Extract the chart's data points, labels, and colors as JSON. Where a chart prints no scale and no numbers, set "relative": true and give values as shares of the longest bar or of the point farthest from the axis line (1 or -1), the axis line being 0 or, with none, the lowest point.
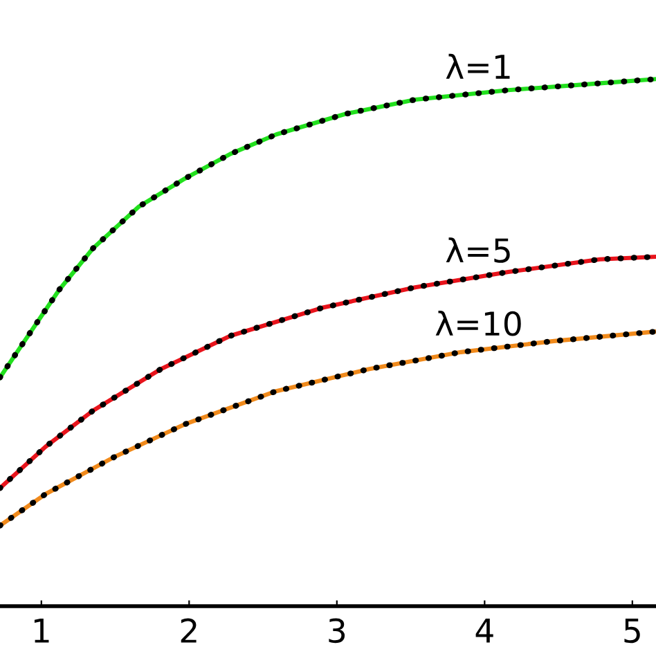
{
  "chart_data": {
    "type": "line",
    "relative": true,
    "xlim": [
      0.72,
      5.16
    ],
    "xticks": [
      1,
      2,
      3,
      4,
      5
    ],
    "line_style": "solid",
    "marker": "none",
    "grid": false,
    "legend": false,
    "series": [
      {
        "name": "λ=1",
        "color": "#22e01e",
        "x": [
          0.72,
          0.91,
          1.12,
          1.35,
          1.66,
          1.97,
          2.28,
          2.59,
          3.06,
          3.53,
          4.16,
          4.78,
          5.16
        ],
        "values": [
          0.434,
          0.513,
          0.6,
          0.679,
          0.758,
          0.811,
          0.858,
          0.895,
          0.934,
          0.961,
          0.979,
          0.992,
          1.0
        ]
      },
      {
        "color": "#000000",
        "line_style": "dotted",
        "x": [
          0.72,
          0.91,
          1.12,
          1.35,
          1.66,
          1.97,
          2.28,
          2.59,
          3.06,
          3.53,
          4.16,
          4.78,
          5.16
        ],
        "values": [
          0.434,
          0.513,
          0.6,
          0.679,
          0.758,
          0.811,
          0.858,
          0.895,
          0.934,
          0.961,
          0.979,
          0.992,
          1.0
        ]
      },
      {
        "name": "λ=5",
        "color": "#e8141c",
        "x": [
          0.72,
          1.03,
          1.35,
          1.81,
          2.28,
          2.9,
          3.53,
          4.16,
          4.78,
          5.16
        ],
        "values": [
          0.224,
          0.303,
          0.371,
          0.45,
          0.513,
          0.566,
          0.605,
          0.634,
          0.658,
          0.663
        ]
      },
      {
        "color": "#000000",
        "line_style": "dotted",
        "x": [
          0.72,
          1.03,
          1.35,
          1.81,
          2.28,
          2.9,
          3.53,
          4.16,
          4.78,
          5.16
        ],
        "values": [
          0.224,
          0.303,
          0.371,
          0.45,
          0.513,
          0.566,
          0.605,
          0.634,
          0.658,
          0.663
        ]
      },
      {
        "name": "λ=10",
        "color": "#f08a1c",
        "x": [
          0.72,
          1.03,
          1.5,
          1.97,
          2.59,
          3.22,
          3.84,
          4.47,
          5.16
        ],
        "values": [
          0.153,
          0.213,
          0.284,
          0.345,
          0.408,
          0.45,
          0.482,
          0.503,
          0.521
        ]
      },
      {
        "color": "#000000",
        "line_style": "dotted",
        "x": [
          0.72,
          1.03,
          1.5,
          1.97,
          2.59,
          3.22,
          3.84,
          4.47,
          5.16
        ],
        "values": [
          0.153,
          0.213,
          0.284,
          0.345,
          0.408,
          0.45,
          0.482,
          0.503,
          0.521
        ]
      }
    ]
  }
}
